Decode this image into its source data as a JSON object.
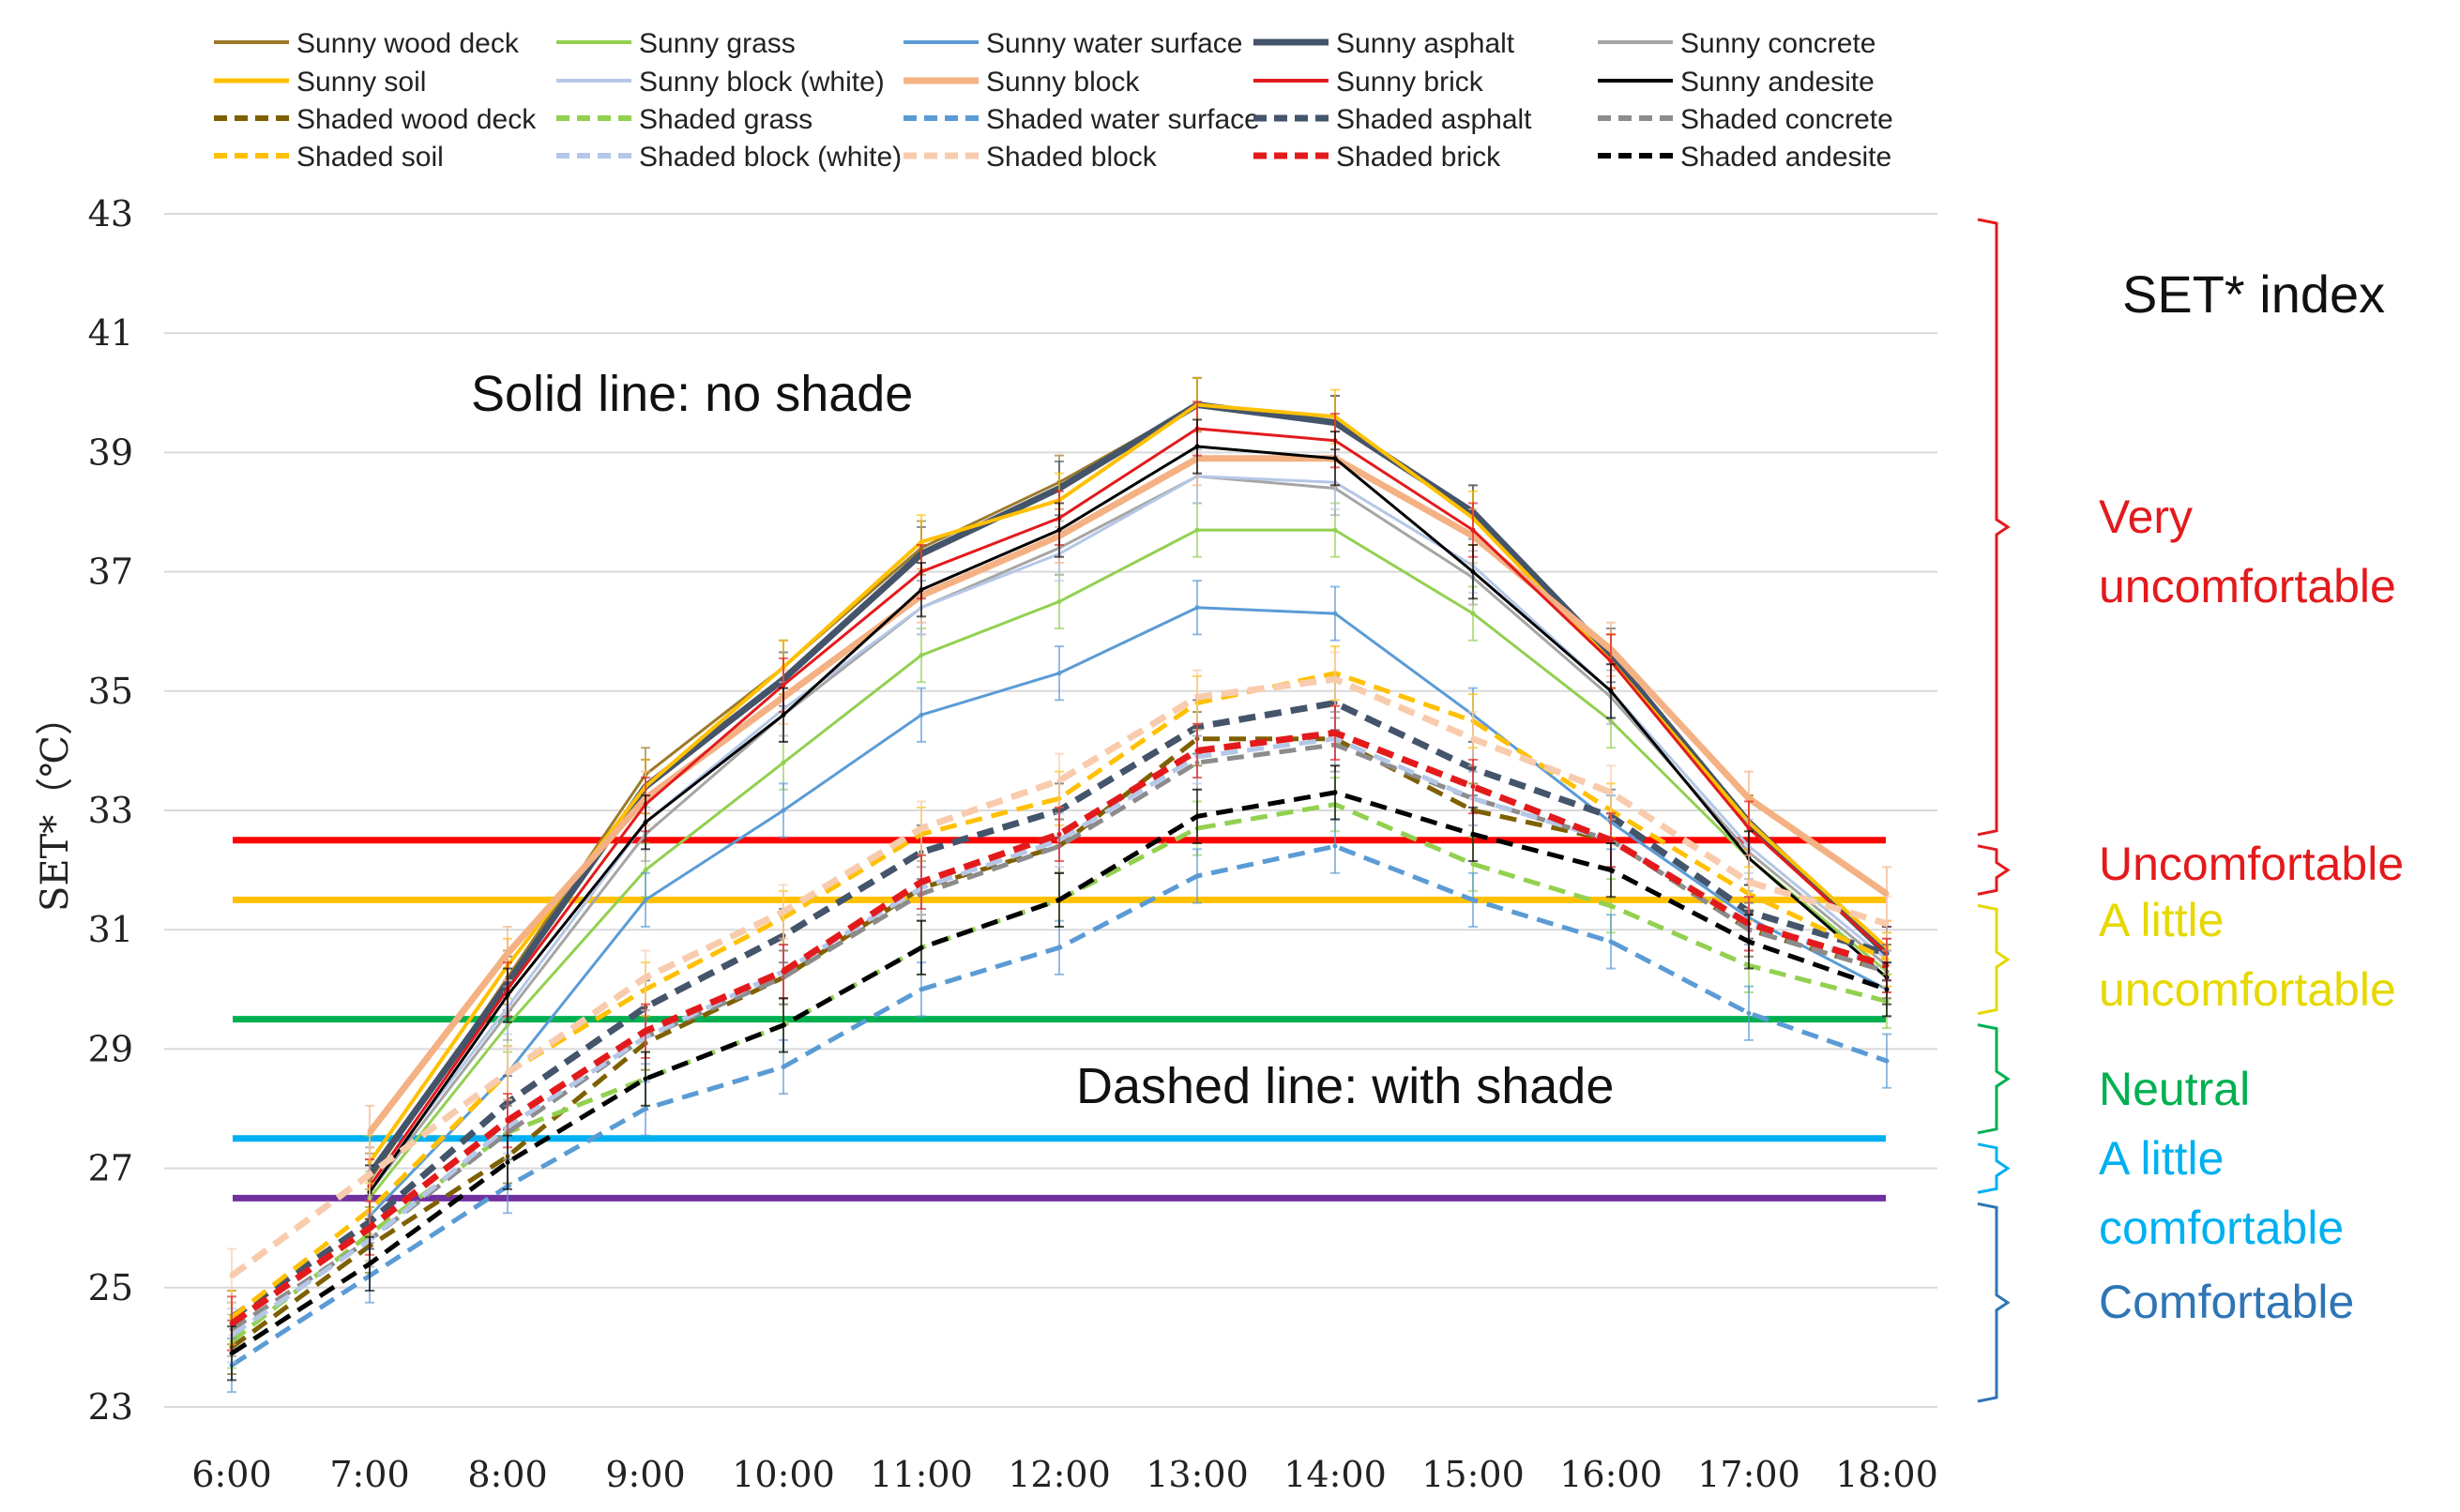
{
  "chart_data": {
    "type": "line",
    "title": "",
    "xlabel": "",
    "ylabel": "SET*（℃）",
    "ylim": [
      23,
      43
    ],
    "yticks": [
      "23",
      "25",
      "27",
      "29",
      "31",
      "33",
      "35",
      "37",
      "39",
      "41",
      "43"
    ],
    "categories": [
      "6:00",
      "7:00",
      "8:00",
      "9:00",
      "10:00",
      "11:00",
      "12:00",
      "13:00",
      "14:00",
      "15:00",
      "16:00",
      "17:00",
      "18:00"
    ],
    "grid": true,
    "series": [
      {
        "name": "Sunny wood deck",
        "color": "#9b7a2a",
        "dashed": false,
        "width": 3,
        "values": [
          null,
          26.8,
          30.2,
          33.6,
          35.4,
          37.4,
          38.5,
          39.8,
          39.5,
          38.0,
          35.5,
          32.8,
          30.6
        ]
      },
      {
        "name": "Sunny grass",
        "color": "#92d050",
        "dashed": false,
        "width": 3,
        "values": [
          null,
          26.5,
          29.4,
          32.0,
          33.8,
          35.6,
          36.5,
          37.7,
          37.7,
          36.3,
          34.5,
          32.2,
          30.3
        ]
      },
      {
        "name": "Sunny water surface",
        "color": "#5b9bd5",
        "dashed": false,
        "width": 3,
        "values": [
          null,
          26.2,
          28.6,
          31.5,
          33.0,
          34.6,
          35.3,
          36.4,
          36.3,
          34.6,
          32.8,
          31.2,
          30.0
        ]
      },
      {
        "name": "Sunny asphalt",
        "color": "#44546a",
        "dashed": false,
        "width": 7,
        "values": [
          null,
          26.9,
          30.1,
          33.4,
          35.2,
          37.3,
          38.4,
          39.8,
          39.5,
          38.0,
          35.6,
          32.8,
          30.6
        ]
      },
      {
        "name": "Sunny concrete",
        "color": "#a5a5a5",
        "dashed": false,
        "width": 3,
        "values": [
          null,
          26.6,
          29.6,
          32.6,
          34.6,
          36.4,
          37.4,
          38.6,
          38.4,
          36.9,
          34.9,
          32.3,
          30.4
        ]
      },
      {
        "name": "Sunny soil",
        "color": "#ffc000",
        "dashed": false,
        "width": 4,
        "values": [
          null,
          27.1,
          30.4,
          33.4,
          35.4,
          37.5,
          38.2,
          39.8,
          39.6,
          37.9,
          35.5,
          32.8,
          30.7
        ]
      },
      {
        "name": "Sunny block (white)",
        "color": "#b4c7e7",
        "dashed": false,
        "width": 3,
        "values": [
          null,
          26.7,
          29.7,
          32.8,
          34.7,
          36.4,
          37.3,
          38.6,
          38.5,
          37.1,
          35.0,
          32.4,
          30.5
        ]
      },
      {
        "name": "Sunny block",
        "color": "#f4b183",
        "dashed": false,
        "width": 7,
        "values": [
          null,
          27.6,
          30.6,
          33.2,
          34.9,
          36.6,
          37.6,
          38.9,
          38.9,
          37.6,
          35.7,
          33.2,
          31.6
        ]
      },
      {
        "name": "Sunny brick",
        "color": "#e31a1c",
        "dashed": false,
        "width": 3,
        "values": [
          null,
          26.7,
          30.0,
          33.1,
          35.1,
          37.0,
          37.9,
          39.4,
          39.2,
          37.7,
          35.5,
          32.7,
          30.6
        ]
      },
      {
        "name": "Sunny andesite",
        "color": "#000000",
        "dashed": false,
        "width": 3,
        "values": [
          null,
          26.6,
          29.9,
          32.8,
          34.6,
          36.7,
          37.7,
          39.1,
          38.9,
          37.0,
          35.0,
          32.2,
          30.2
        ]
      },
      {
        "name": "Shaded wood deck",
        "color": "#7f6000",
        "dashed": true,
        "width": 5,
        "values": [
          24.0,
          25.7,
          27.2,
          29.1,
          30.2,
          31.7,
          32.4,
          34.2,
          34.2,
          33.0,
          32.5,
          31.0,
          30.3
        ]
      },
      {
        "name": "Shaded grass",
        "color": "#92d050",
        "dashed": true,
        "width": 5,
        "values": [
          24.1,
          25.9,
          27.6,
          28.5,
          29.4,
          30.7,
          31.5,
          32.7,
          33.1,
          32.1,
          31.4,
          30.4,
          29.8
        ]
      },
      {
        "name": "Shaded water surface",
        "color": "#5b9bd5",
        "dashed": true,
        "width": 5,
        "values": [
          23.7,
          25.2,
          26.7,
          28.0,
          28.7,
          30.0,
          30.7,
          31.9,
          32.4,
          31.5,
          30.8,
          29.6,
          28.8
        ]
      },
      {
        "name": "Shaded asphalt",
        "color": "#44546a",
        "dashed": true,
        "width": 7,
        "values": [
          24.5,
          26.1,
          28.1,
          29.7,
          30.9,
          32.3,
          33.0,
          34.4,
          34.8,
          33.7,
          32.9,
          31.3,
          30.6
        ]
      },
      {
        "name": "Shaded concrete",
        "color": "#8c8c8c",
        "dashed": true,
        "width": 5,
        "values": [
          24.3,
          25.8,
          27.6,
          29.2,
          30.2,
          31.6,
          32.4,
          33.8,
          34.1,
          33.2,
          32.5,
          31.0,
          30.3
        ]
      },
      {
        "name": "Shaded soil",
        "color": "#ffc000",
        "dashed": true,
        "width": 5,
        "values": [
          24.5,
          26.3,
          28.6,
          30.0,
          31.2,
          32.6,
          33.2,
          34.8,
          35.3,
          34.5,
          33.0,
          31.6,
          30.5
        ]
      },
      {
        "name": "Shaded block (white)",
        "color": "#b4c7e7",
        "dashed": true,
        "width": 5,
        "values": [
          24.2,
          25.8,
          27.7,
          29.2,
          30.3,
          31.7,
          32.5,
          33.9,
          34.2,
          33.2,
          32.5,
          31.1,
          30.4
        ]
      },
      {
        "name": "Shaded block",
        "color": "#f8cbad",
        "dashed": true,
        "width": 7,
        "values": [
          25.2,
          26.9,
          28.6,
          30.2,
          31.3,
          32.7,
          33.5,
          34.9,
          35.2,
          34.2,
          33.3,
          31.8,
          31.1
        ]
      },
      {
        "name": "Shaded brick",
        "color": "#e31a1c",
        "dashed": true,
        "width": 7,
        "values": [
          24.4,
          26.0,
          27.8,
          29.3,
          30.3,
          31.8,
          32.6,
          34.0,
          34.3,
          33.4,
          32.5,
          31.1,
          30.4
        ]
      },
      {
        "name": "Shaded andesite",
        "color": "#000000",
        "dashed": true,
        "width": 5,
        "values": [
          23.9,
          25.4,
          27.1,
          28.5,
          29.4,
          30.7,
          31.5,
          32.9,
          33.3,
          32.6,
          32.0,
          30.8,
          30.0
        ]
      }
    ],
    "threshold_lines": [
      {
        "value": 32.5,
        "color": "#ff0000"
      },
      {
        "value": 31.5,
        "color": "#ffc000"
      },
      {
        "value": 29.5,
        "color": "#00b050"
      },
      {
        "value": 27.5,
        "color": "#00b0f0"
      },
      {
        "value": 26.5,
        "color": "#7030a0"
      }
    ],
    "annotations": {
      "solid": "Solid line: no shade",
      "dashed": "Dashed line: with shade"
    },
    "index_title": "SET* index",
    "comfort_levels": [
      {
        "lines": [
          "Very",
          "uncomfortable"
        ],
        "color": "#e31a1c",
        "from": 32.5,
        "to": 43
      },
      {
        "lines": [
          "Uncomfortable"
        ],
        "color": "#e31a1c",
        "from": 31.5,
        "to": 32.5
      },
      {
        "lines": [
          "A little",
          "uncomfortable"
        ],
        "color": "#e6d800",
        "from": 29.5,
        "to": 31.5
      },
      {
        "lines": [
          "Neutral"
        ],
        "color": "#00b050",
        "from": 27.5,
        "to": 29.5
      },
      {
        "lines": [
          "A little",
          "comfortable"
        ],
        "color": "#00b0f0",
        "from": 26.5,
        "to": 27.5
      },
      {
        "lines": [
          "Comfortable"
        ],
        "color": "#2e75b6",
        "from": 23,
        "to": 26.5
      }
    ]
  }
}
